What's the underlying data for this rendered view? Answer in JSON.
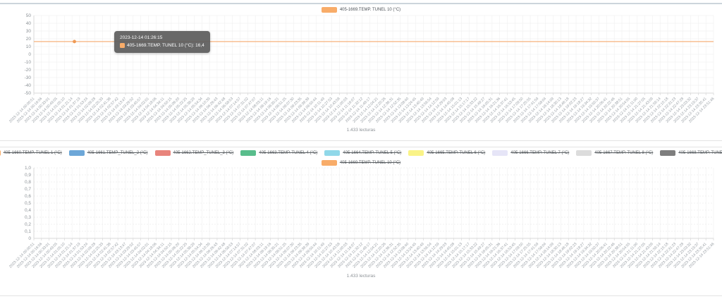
{
  "page": {
    "background": "#ffffff",
    "top_divider_color": "#ccd5db",
    "panel_border_color": "#e3e3e3"
  },
  "chart_data": {
    "x_tick_labels": [
      "2023-12-14 00:00:51",
      "2023-12-14 00:16:56",
      "2023-12-14 00:33:01",
      "2023-12-14 00:49:05",
      "2023-12-14 01:05:10",
      "2023-12-14 01:21:14",
      "2023-12-14 01:37:19",
      "2023-12-14 01:53:24",
      "2023-12-14 02:09:28",
      "2023-12-14 02:25:33",
      "2023-12-14 02:41:38",
      "2023-12-14 02:57:42",
      "2023-12-14 03:13:47",
      "2023-12-14 03:29:52",
      "2023-12-14 03:45:57",
      "2023-12-14 04:02:01",
      "2023-12-14 04:18:06",
      "2023-12-14 04:34:11",
      "2023-12-14 04:50:15",
      "2023-12-14 05:06:20",
      "2023-12-14 05:22:25",
      "2023-12-14 05:38:29",
      "2023-12-14 05:54:34",
      "2023-12-14 06:10:39",
      "2023-12-14 06:26:43",
      "2023-12-14 06:42:48",
      "2023-12-14 06:58:53",
      "2023-12-14 07:14:57",
      "2023-12-14 07:31:02",
      "2023-12-14 07:47:07",
      "2023-12-14 08:03:11",
      "2023-12-14 08:19:16",
      "2023-12-14 08:35:21",
      "2023-12-14 08:51:25",
      "2023-12-14 09:07:30",
      "2023-12-14 09:23:35",
      "2023-12-14 09:39:39",
      "2023-12-14 09:55:44",
      "2023-12-14 10:11:49",
      "2023-12-14 10:27:53",
      "2023-12-14 10:43:58",
      "2023-12-14 11:00:03",
      "2023-12-14 11:16:07",
      "2023-12-14 11:32:12",
      "2023-12-14 11:48:17",
      "2023-12-14 12:04:21",
      "2023-12-14 12:20:26",
      "2023-12-14 12:36:31",
      "2023-12-14 12:52:35",
      "2023-12-14 13:08:40",
      "2023-12-14 13:24:45",
      "2023-12-14 13:40:49",
      "2023-12-14 13:56:54",
      "2023-12-14 14:12:59",
      "2023-12-14 14:29:03",
      "2023-12-14 14:45:08",
      "2023-12-14 15:01:13",
      "2023-12-14 15:17:17",
      "2023-12-14 15:33:22",
      "2023-12-14 15:49:27",
      "2023-12-14 16:05:31",
      "2023-12-14 16:21:36",
      "2023-12-14 16:37:41",
      "2023-12-14 16:53:45",
      "2023-12-14 17:09:50",
      "2023-12-14 17:25:55",
      "2023-12-14 17:41:59",
      "2023-12-14 17:58:04",
      "2023-12-14 18:14:09",
      "2023-12-14 18:30:13",
      "2023-12-14 18:46:18",
      "2023-12-14 19:02:23",
      "2023-12-14 19:18:27",
      "2023-12-14 19:34:32",
      "2023-12-14 19:50:37",
      "2023-12-14 20:06:41",
      "2023-12-14 20:22:46",
      "2023-12-14 20:38:51",
      "2023-12-14 20:54:55",
      "2023-12-14 21:11:00",
      "2023-12-14 21:27:05",
      "2023-12-14 21:43:09",
      "2023-12-14 21:59:14",
      "2023-12-14 22:15:18",
      "2023-12-14 22:31:23",
      "2023-12-14 22:47:28",
      "2023-12-14 23:03:32",
      "2023-12-14 23:19:37",
      "2023-12-14 23:35:41",
      "2023-12-14 23:51:46"
    ],
    "charts": [
      {
        "type": "line",
        "title": "",
        "xlabel": "",
        "ylabel": "",
        "legend_position": "top-center",
        "grid": true,
        "ylim": [
          -50,
          50
        ],
        "y_tick_labels": [
          "50",
          "40",
          "30",
          "20",
          "10",
          "0",
          "-10",
          "-20",
          "-30",
          "-40",
          "-50"
        ],
        "legend_rows": [
          [
            {
              "label": "405-1669.TEMP. TUNEL 10 (°C)",
              "color": "#f8ac69",
              "disabled": false
            }
          ]
        ],
        "series": [
          {
            "name": "405-1669.TEMP. TUNEL 10 (°C)",
            "color": "#f6b887",
            "style": "constant-line",
            "value": 16.4
          }
        ],
        "highlight_point": {
          "time": "2023-12-14 01:26:15",
          "value": 16.4,
          "x_fraction": 0.0597,
          "color": "#ef9a55"
        },
        "tooltip": {
          "title": "2023-12-14 01:26:15",
          "label": "405-1669.TEMP. TUNEL 10 (°C): 16,4",
          "color": "#f8ac69"
        },
        "caption": "1.433 lecturas"
      },
      {
        "type": "line",
        "title": "",
        "xlabel": "",
        "ylabel": "",
        "legend_position": "top-center",
        "grid": true,
        "ylim": [
          0,
          1
        ],
        "y_tick_labels": [
          "1,0",
          "0,9",
          "0,8",
          "0,7",
          "0,6",
          "0,5",
          "0,4",
          "0,3",
          "0,2",
          "0,1",
          "0"
        ],
        "legend_rows": [
          [
            {
              "label": "405-1660.TEMP. TUNEL 1 (°C)",
              "color": "#f8ac69",
              "disabled": true
            },
            {
              "label": "405-1661.TEMP_TUNEL_2 (°C)",
              "color": "#6da7d8",
              "disabled": true
            },
            {
              "label": "405-1662.TEMP_TUNEL_3 (°C)",
              "color": "#e8847c",
              "disabled": true
            },
            {
              "label": "405-1663.TEMP. TUNEL 4 (°C)",
              "color": "#59bd8c",
              "disabled": true
            },
            {
              "label": "405-1664.TEMP. TUNEL 5 (°C)",
              "color": "#90d8e9",
              "disabled": true
            },
            {
              "label": "405-1665.TEMP. TUNEL 6 (°C)",
              "color": "#faf387",
              "disabled": true
            },
            {
              "label": "405-1666.TEMP. TUNEL 7 (°C)",
              "color": "#e6e5f7",
              "disabled": true
            },
            {
              "label": "405-1667.TEMP. TUNEL 8 (°C)",
              "color": "#dcdcdc",
              "disabled": true
            },
            {
              "label": "405-1668.TEMP. TUNEL 9 (°C)",
              "color": "#7e7e7e",
              "disabled": true
            }
          ],
          [
            {
              "label": "405-1669.TEMP. TUNEL 10 (°C)",
              "color": "#f8ac69",
              "disabled": true
            }
          ]
        ],
        "series": [],
        "caption": "1.433 lecturas"
      }
    ]
  }
}
